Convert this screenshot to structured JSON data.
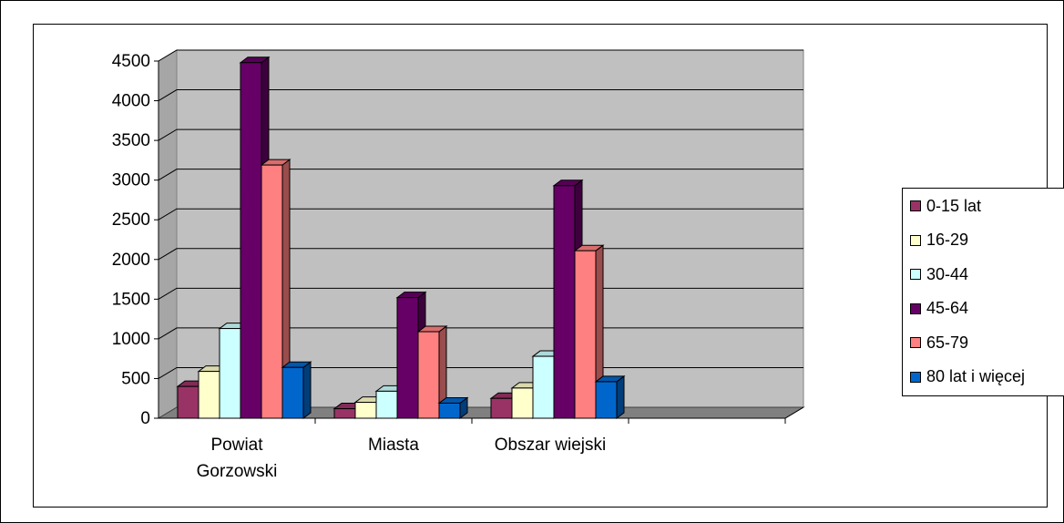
{
  "chart_data": {
    "type": "bar",
    "title": "",
    "xlabel": "",
    "ylabel": "",
    "categories": [
      "Powiat Gorzowski",
      "Miasta",
      "Obszar wiejski"
    ],
    "category_lines": [
      [
        "Powiat",
        "Gorzowski"
      ],
      [
        "Miasta"
      ],
      [
        "Obszar wiejski"
      ]
    ],
    "ylim": [
      0,
      4500
    ],
    "yticks": [
      0,
      500,
      1000,
      1500,
      2000,
      2500,
      3000,
      3500,
      4000,
      4500
    ],
    "grid": true,
    "legend_position": "right",
    "series": [
      {
        "name": "0-15 lat",
        "color": "#993366",
        "values": [
          400,
          120,
          250
        ]
      },
      {
        "name": "16-29",
        "color": "#FFFFCC",
        "values": [
          590,
          200,
          380
        ]
      },
      {
        "name": "30-44",
        "color": "#CCFFFF",
        "values": [
          1130,
          340,
          780
        ]
      },
      {
        "name": "45-64",
        "color": "#660066",
        "values": [
          4480,
          1520,
          2930
        ]
      },
      {
        "name": "65-79",
        "color": "#FF8080",
        "values": [
          3190,
          1090,
          2110
        ]
      },
      {
        "name": "80 lat i więcej",
        "color": "#0066CC",
        "values": [
          640,
          190,
          460
        ]
      }
    ]
  }
}
